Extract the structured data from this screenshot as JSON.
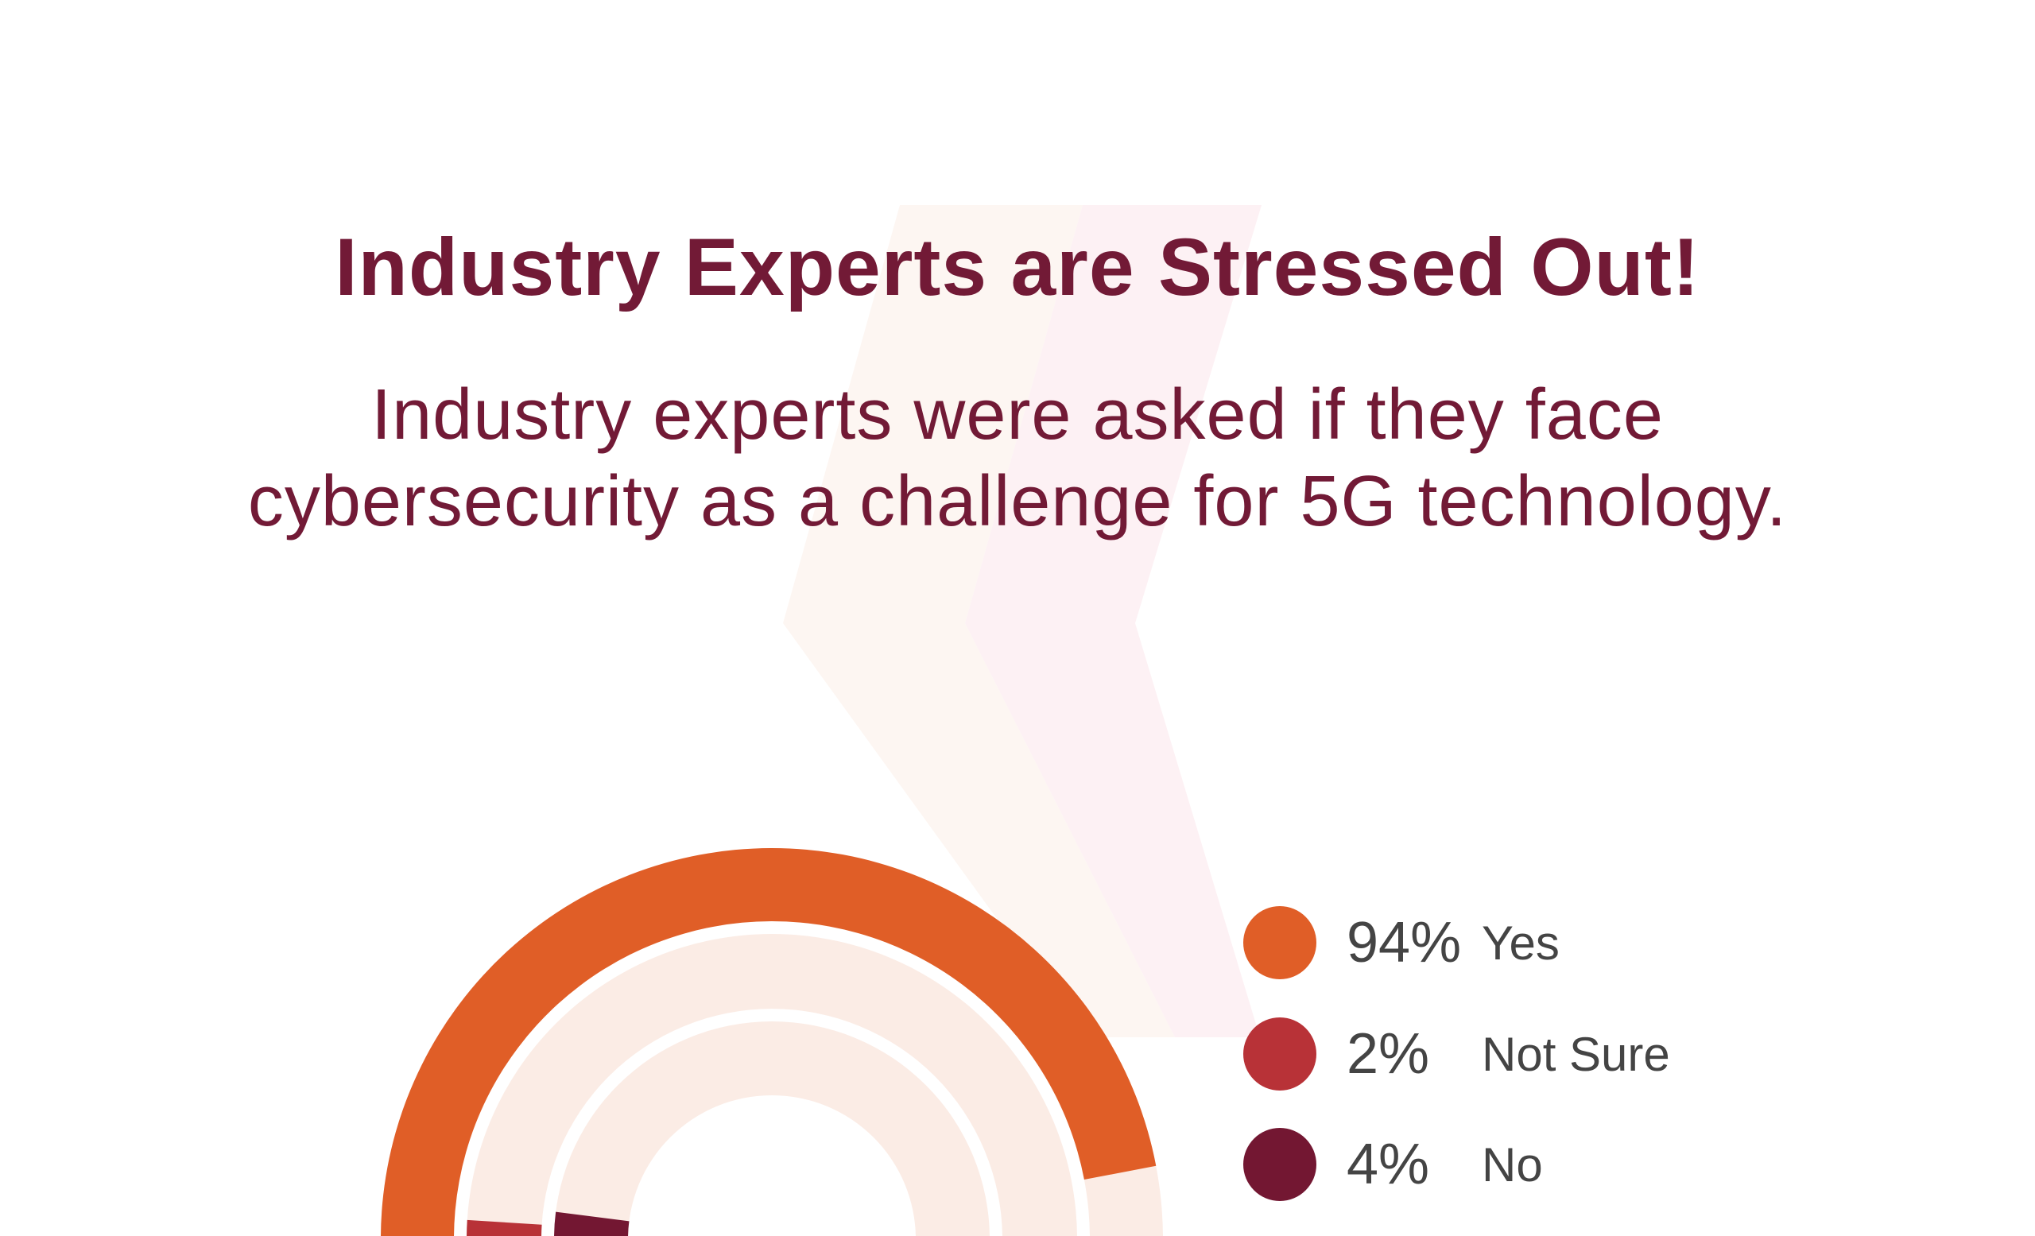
{
  "header": {
    "title": "Industry Experts are Stressed Out!",
    "subtitle_lines": [
      "Industry experts were asked if they face",
      "cybersecurity as a challenge for 5G technology."
    ]
  },
  "colors": {
    "title": "#721a36",
    "yes": "#e05e27",
    "not_sure": "#b83237",
    "no": "#731732",
    "track": "#fbece5",
    "bg_shape_left": "#fdf6f2",
    "bg_shape_right": "#fdf1f4"
  },
  "legend": [
    {
      "percent": "94%",
      "label": "Yes"
    },
    {
      "percent": "2%",
      "label": "Not Sure"
    },
    {
      "percent": "4%",
      "label": "No"
    }
  ],
  "chart_data": {
    "type": "pie",
    "variant": "concentric semicircle radial bars",
    "title": "Industry Experts are Stressed Out!",
    "categories": [
      "Yes",
      "Not Sure",
      "No"
    ],
    "values": [
      94,
      2,
      4
    ],
    "unit": "%",
    "max": 100,
    "legend_position": "right"
  }
}
